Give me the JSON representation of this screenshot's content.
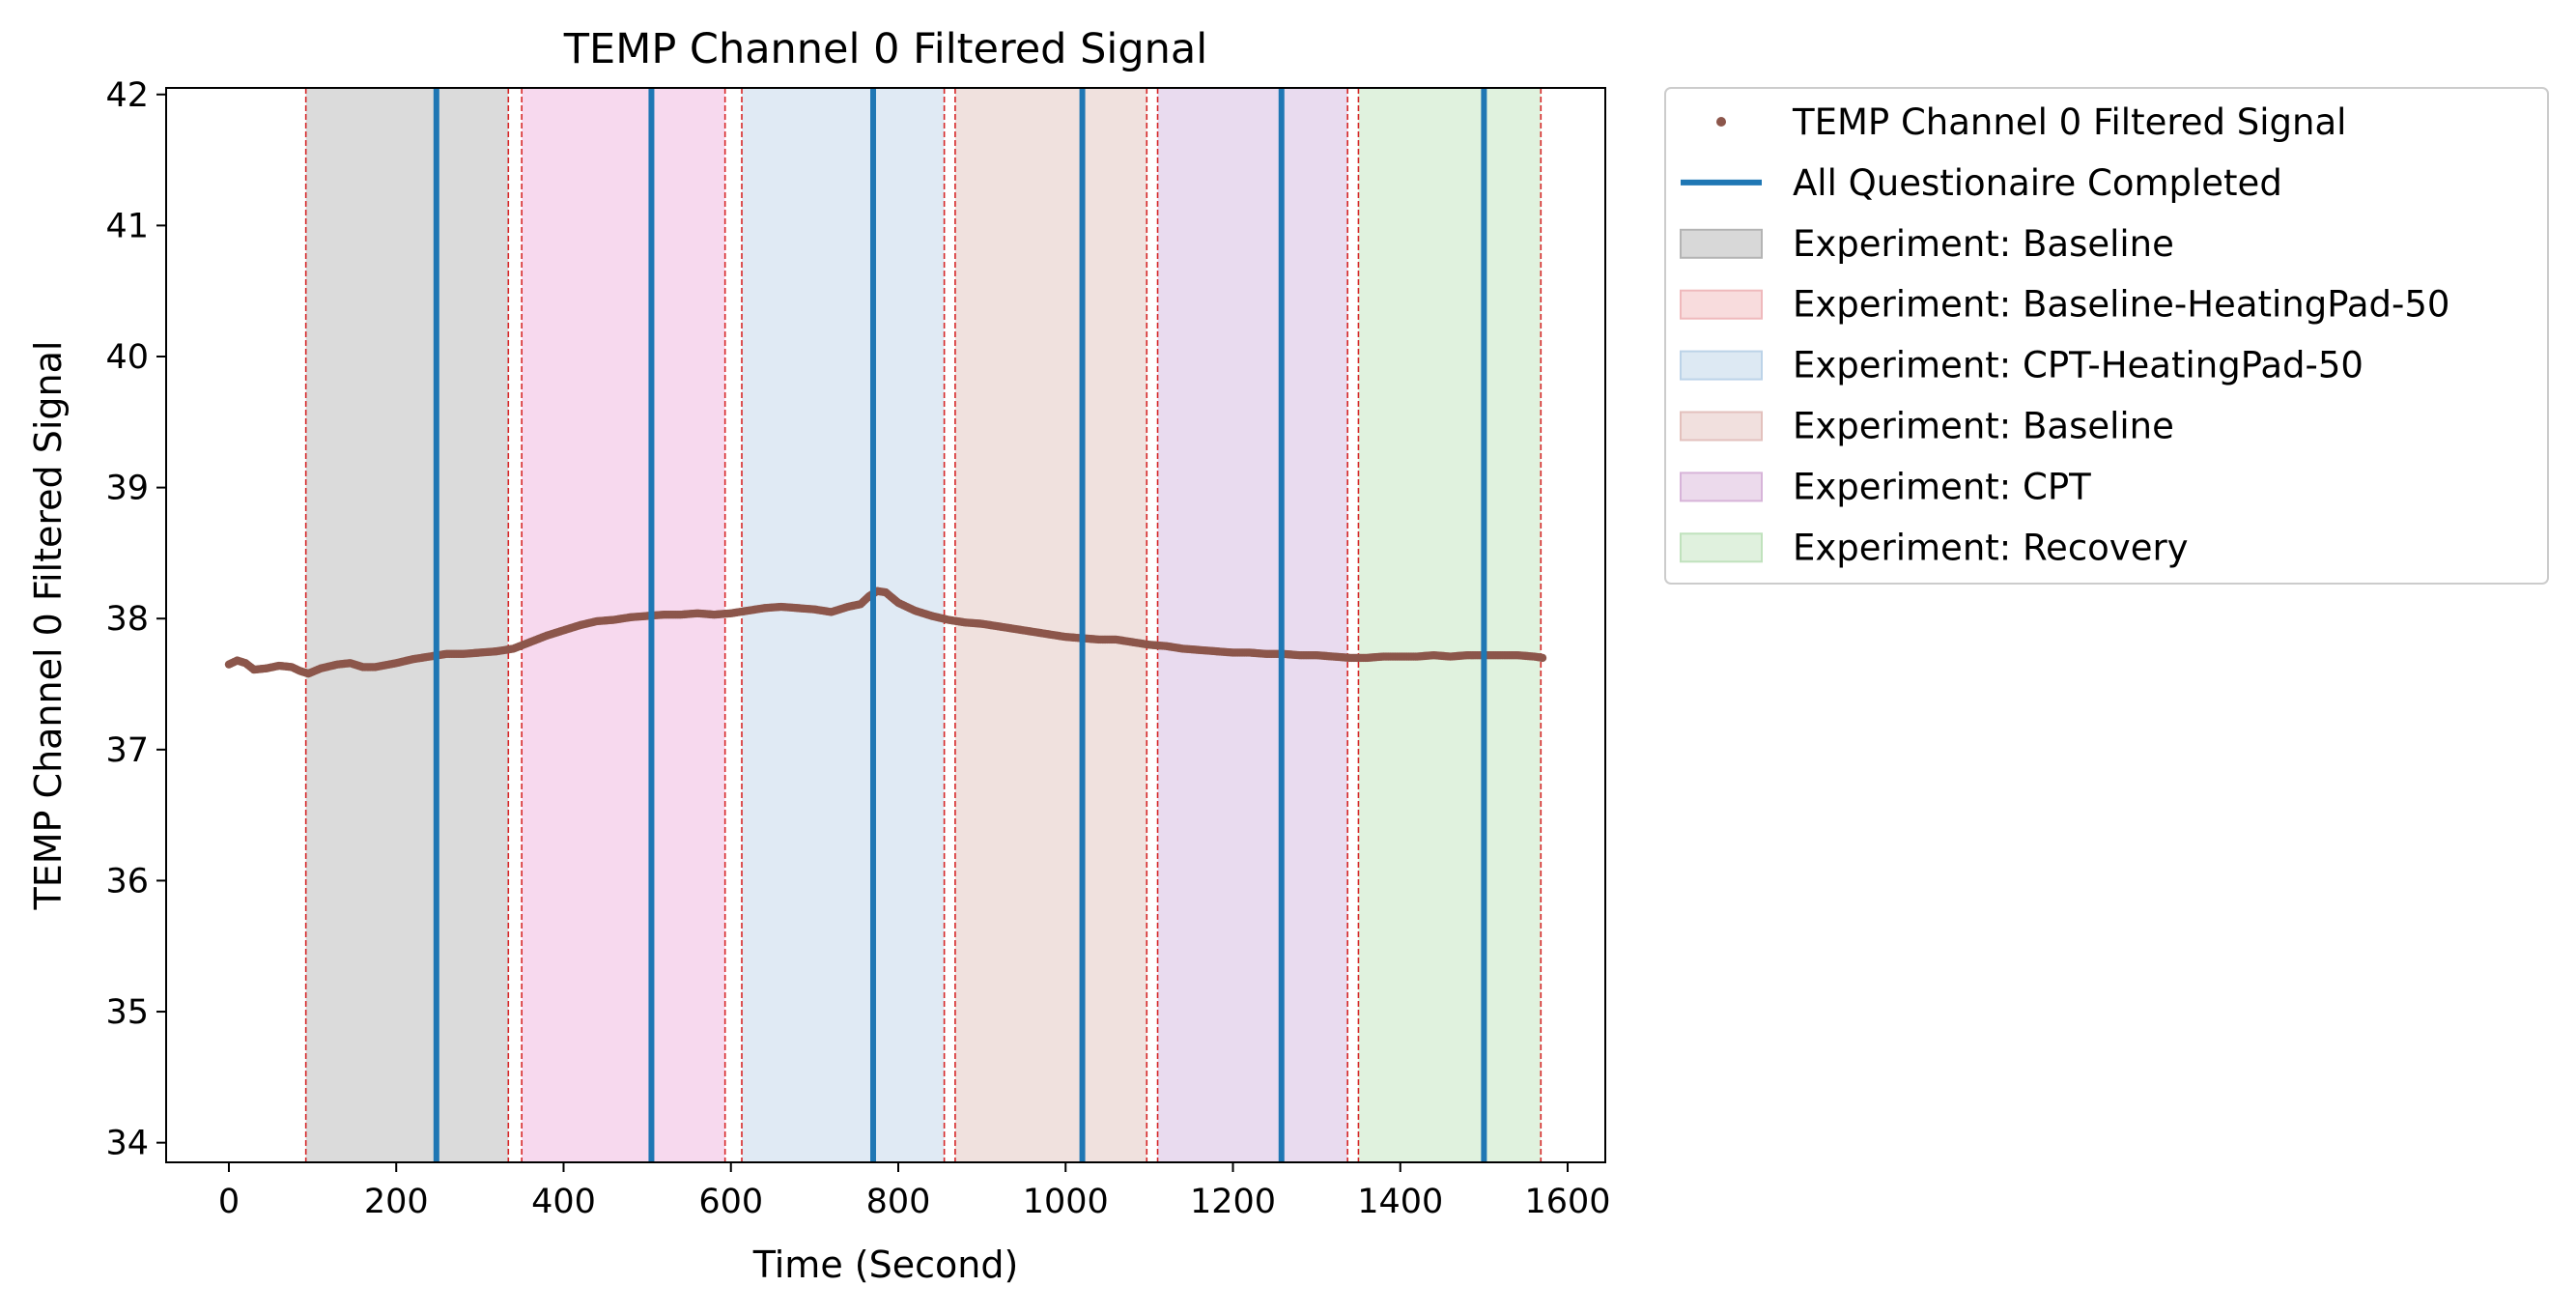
{
  "chart_data": {
    "type": "line",
    "title": "TEMP Channel 0 Filtered Signal",
    "xlabel": "Time (Second)",
    "ylabel": "TEMP Channel 0 Filtered Signal",
    "xlim": [
      -75,
      1645
    ],
    "ylim": [
      33.85,
      42.05
    ],
    "x_ticks": [
      0,
      200,
      400,
      600,
      800,
      1000,
      1200,
      1400,
      1600
    ],
    "y_ticks": [
      34,
      35,
      36,
      37,
      38,
      39,
      40,
      41,
      42
    ],
    "grid": false,
    "legend_position": "outside-right-top",
    "series": [
      {
        "name": "TEMP Channel 0 Filtered Signal",
        "color": "#8c564b",
        "style": "dots",
        "points": [
          [
            0,
            37.65
          ],
          [
            10,
            37.68
          ],
          [
            20,
            37.66
          ],
          [
            30,
            37.61
          ],
          [
            45,
            37.62
          ],
          [
            60,
            37.64
          ],
          [
            75,
            37.63
          ],
          [
            85,
            37.6
          ],
          [
            95,
            37.58
          ],
          [
            110,
            37.62
          ],
          [
            130,
            37.65
          ],
          [
            145,
            37.66
          ],
          [
            160,
            37.63
          ],
          [
            175,
            37.63
          ],
          [
            200,
            37.66
          ],
          [
            220,
            37.69
          ],
          [
            240,
            37.71
          ],
          [
            260,
            37.73
          ],
          [
            280,
            37.73
          ],
          [
            300,
            37.74
          ],
          [
            320,
            37.75
          ],
          [
            340,
            37.77
          ],
          [
            360,
            37.82
          ],
          [
            380,
            37.87
          ],
          [
            400,
            37.91
          ],
          [
            420,
            37.95
          ],
          [
            440,
            37.98
          ],
          [
            460,
            37.99
          ],
          [
            480,
            38.01
          ],
          [
            500,
            38.02
          ],
          [
            520,
            38.03
          ],
          [
            540,
            38.03
          ],
          [
            560,
            38.04
          ],
          [
            580,
            38.03
          ],
          [
            600,
            38.04
          ],
          [
            620,
            38.06
          ],
          [
            640,
            38.08
          ],
          [
            660,
            38.09
          ],
          [
            680,
            38.08
          ],
          [
            700,
            38.07
          ],
          [
            720,
            38.05
          ],
          [
            740,
            38.09
          ],
          [
            755,
            38.11
          ],
          [
            765,
            38.17
          ],
          [
            775,
            38.21
          ],
          [
            785,
            38.2
          ],
          [
            800,
            38.12
          ],
          [
            820,
            38.06
          ],
          [
            840,
            38.02
          ],
          [
            860,
            37.99
          ],
          [
            880,
            37.97
          ],
          [
            900,
            37.96
          ],
          [
            920,
            37.94
          ],
          [
            940,
            37.92
          ],
          [
            960,
            37.9
          ],
          [
            980,
            37.88
          ],
          [
            1000,
            37.86
          ],
          [
            1020,
            37.85
          ],
          [
            1040,
            37.84
          ],
          [
            1060,
            37.84
          ],
          [
            1080,
            37.82
          ],
          [
            1100,
            37.8
          ],
          [
            1120,
            37.79
          ],
          [
            1140,
            37.77
          ],
          [
            1160,
            37.76
          ],
          [
            1180,
            37.75
          ],
          [
            1200,
            37.74
          ],
          [
            1220,
            37.74
          ],
          [
            1240,
            37.73
          ],
          [
            1260,
            37.73
          ],
          [
            1280,
            37.72
          ],
          [
            1300,
            37.72
          ],
          [
            1320,
            37.71
          ],
          [
            1340,
            37.7
          ],
          [
            1360,
            37.7
          ],
          [
            1380,
            37.71
          ],
          [
            1400,
            37.71
          ],
          [
            1420,
            37.71
          ],
          [
            1440,
            37.72
          ],
          [
            1460,
            37.71
          ],
          [
            1480,
            37.72
          ],
          [
            1500,
            37.72
          ],
          [
            1520,
            37.72
          ],
          [
            1540,
            37.72
          ],
          [
            1560,
            37.71
          ],
          [
            1570,
            37.7
          ]
        ]
      }
    ],
    "questionnaire_lines": {
      "name": "All Questionaire Completed",
      "color": "#1f77b4",
      "x": [
        248,
        505,
        770,
        1020,
        1258,
        1500
      ]
    },
    "phase_boundaries": {
      "color": "#d62728",
      "x": [
        92,
        334,
        350,
        593,
        613,
        855,
        868,
        1097,
        1110,
        1337,
        1350,
        1568
      ]
    },
    "phases": [
      {
        "label": "Experiment: Baseline",
        "start": 92,
        "end": 334,
        "color": "#7f7f7f"
      },
      {
        "label": "Experiment: Baseline-HeatingPad-50",
        "start": 350,
        "end": 593,
        "color": "#e377c2"
      },
      {
        "label": "Experiment: CPT-HeatingPad-50",
        "start": 613,
        "end": 855,
        "color": "#8fb4d8"
      },
      {
        "label": "Experiment: Baseline",
        "start": 868,
        "end": 1097,
        "color": "#c9928a"
      },
      {
        "label": "Experiment: CPT",
        "start": 1110,
        "end": 1337,
        "color": "#b07cc6"
      },
      {
        "label": "Experiment: Recovery",
        "start": 1350,
        "end": 1568,
        "color": "#8fd08a"
      }
    ],
    "legend": [
      {
        "label": "TEMP Channel 0 Filtered Signal",
        "kind": "dot",
        "color": "#8c564b"
      },
      {
        "label": "All Questionaire Completed",
        "kind": "line",
        "color": "#1f77b4"
      },
      {
        "label": "Experiment: Baseline",
        "kind": "patch",
        "fill": "#d8d8d8",
        "stroke": "#b4b4b4"
      },
      {
        "label": "Experiment: Baseline-HeatingPad-50",
        "kind": "patch",
        "fill": "#f8dcdd",
        "stroke": "#efb9bc"
      },
      {
        "label": "Experiment: CPT-HeatingPad-50",
        "kind": "patch",
        "fill": "#dde9f3",
        "stroke": "#bcd3e8"
      },
      {
        "label": "Experiment: Baseline",
        "kind": "patch",
        "fill": "#f1e0de",
        "stroke": "#e3c1bd"
      },
      {
        "label": "Experiment: CPT",
        "kind": "patch",
        "fill": "#ecdaec",
        "stroke": "#d7b4d9"
      },
      {
        "label": "Experiment: Recovery",
        "kind": "patch",
        "fill": "#e0f1de",
        "stroke": "#c0e2bd"
      }
    ]
  }
}
